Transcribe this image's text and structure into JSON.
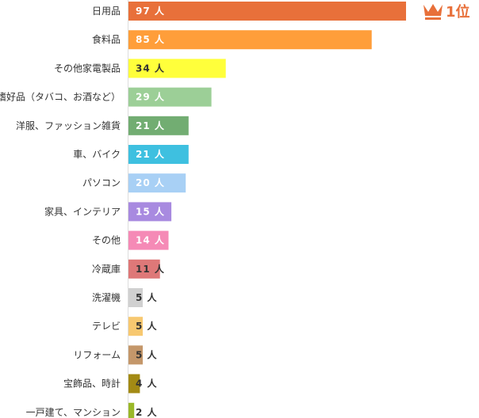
{
  "chart_data": {
    "type": "bar",
    "orientation": "horizontal",
    "unit": "人",
    "categories": [
      "日用品",
      "食料品",
      "その他家電製品",
      "嗜好品（タバコ、お酒など）",
      "洋服、ファッション雑貨",
      "車、バイク",
      "パソコン",
      "家具、インテリア",
      "その他",
      "冷蔵庫",
      "洗濯機",
      "テレビ",
      "リフォーム",
      "宝飾品、時計",
      "一戸建て、マンション"
    ],
    "values": [
      97,
      85,
      34,
      29,
      21,
      21,
      20,
      15,
      14,
      11,
      5,
      5,
      5,
      4,
      2
    ],
    "colors": [
      "#e8703a",
      "#ff9e3a",
      "#ffff3b",
      "#9ccf97",
      "#72ad72",
      "#3ec0e0",
      "#a8d0f5",
      "#a88ae0",
      "#f58ab6",
      "#de7878",
      "#d0d0d0",
      "#f7c870",
      "#c4976a",
      "#a38a14",
      "#9ab828"
    ],
    "label_colors": [
      "#ffffff",
      "#ffffff",
      "#333333",
      "#ffffff",
      "#ffffff",
      "#ffffff",
      "#ffffff",
      "#ffffff",
      "#ffffff",
      "#333333",
      "#333333",
      "#333333",
      "#333333",
      "#333333",
      "#333333"
    ],
    "xlim": [
      0,
      100
    ],
    "grid": false,
    "legend": "none",
    "annotation": {
      "text": "1位",
      "icon": "crown-icon",
      "color": "#e8703a"
    }
  }
}
